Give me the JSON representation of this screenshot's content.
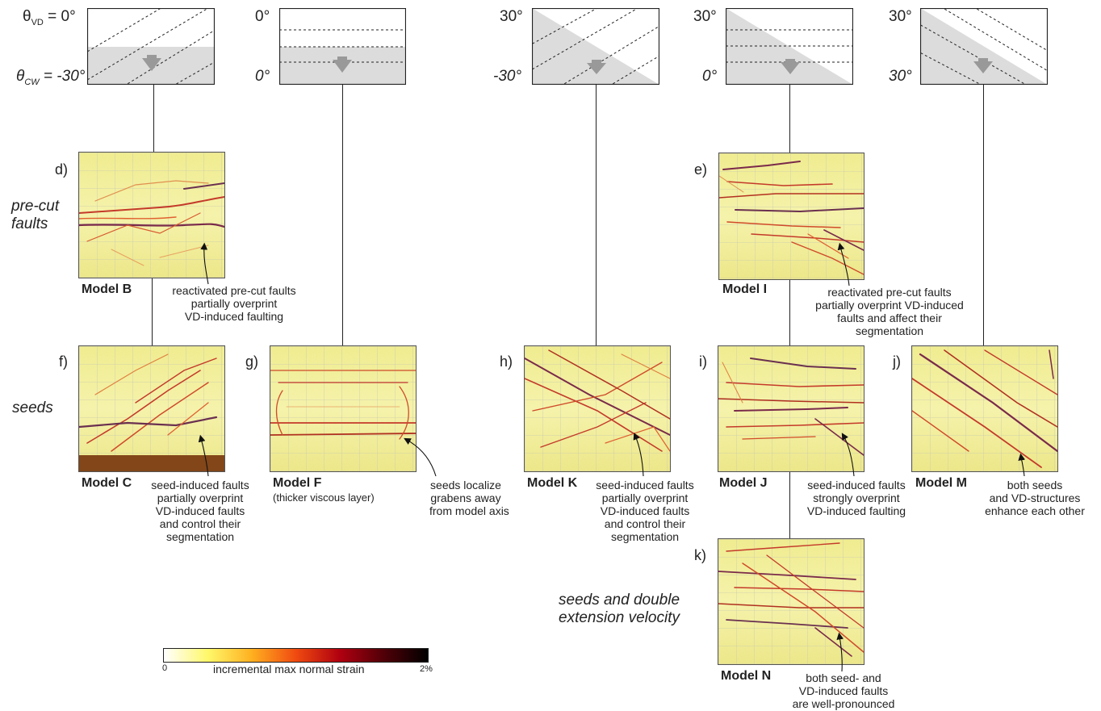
{
  "schematics": [
    {
      "id": "s1",
      "top_angle": "0°",
      "bottom_angle": "-30°",
      "theta_vd_label": "θ",
      "theta_vd_sub": "VD",
      "theta_vd_val": "= 0°",
      "theta_cw_label": "θ",
      "theta_cw_sub": "CW",
      "theta_cw_val": "= -30°"
    },
    {
      "id": "s2",
      "top_angle": "0°",
      "bottom_angle": "0°"
    },
    {
      "id": "s3",
      "top_angle": "30°",
      "bottom_angle": "-30°"
    },
    {
      "id": "s4",
      "top_angle": "30°",
      "bottom_angle": "0°"
    },
    {
      "id": "s5",
      "top_angle": "30°",
      "bottom_angle": "30°"
    }
  ],
  "groups": {
    "precut": [
      "pre-cut",
      "faults"
    ],
    "seeds": "seeds",
    "double": [
      "seeds and double",
      "extension velocity"
    ]
  },
  "panels": [
    {
      "id": "d",
      "letter": "d)",
      "model": "Model B",
      "sub": "",
      "caption": [
        "reactivated pre-cut faults",
        "partially overprint",
        "VD-induced faulting"
      ]
    },
    {
      "id": "e",
      "letter": "e)",
      "model": "Model I",
      "sub": "",
      "caption": [
        "reactivated pre-cut faults",
        "partially overprint VD-induced",
        "faults and affect their",
        "segmentation"
      ]
    },
    {
      "id": "f",
      "letter": "f)",
      "model": "Model C",
      "sub": "",
      "caption": [
        "seed-induced faults",
        "partially overprint",
        "VD-induced faults",
        "and control their",
        "segmentation"
      ]
    },
    {
      "id": "g",
      "letter": "g)",
      "model": "Model F",
      "sub": "(thicker viscous layer)",
      "caption": [
        "seeds localize",
        "grabens away",
        "from model axis"
      ]
    },
    {
      "id": "h",
      "letter": "h)",
      "model": "Model K",
      "sub": "",
      "caption": [
        "seed-induced faults",
        "partially overprint",
        "VD-induced faults",
        "and control their",
        "segmentation"
      ]
    },
    {
      "id": "i",
      "letter": "i)",
      "model": "Model J",
      "sub": "",
      "caption": [
        "seed-induced faults",
        "strongly overprint",
        "VD-induced faulting"
      ]
    },
    {
      "id": "j",
      "letter": "j)",
      "model": "Model M",
      "sub": "",
      "caption": [
        "both seeds",
        "and VD-structures",
        "enhance each other"
      ]
    },
    {
      "id": "k",
      "letter": "k)",
      "model": "Model N",
      "sub": "",
      "caption": [
        "both seed- and",
        "VD-induced faults",
        "are well-pronounced"
      ]
    }
  ],
  "colorbar": {
    "min": "0",
    "max": "2%",
    "label": "incremental max normal strain",
    "colors": [
      "#ffffff",
      "#fff86a",
      "#ffb020",
      "#f04a10",
      "#b00010",
      "#500008",
      "#000000"
    ]
  }
}
